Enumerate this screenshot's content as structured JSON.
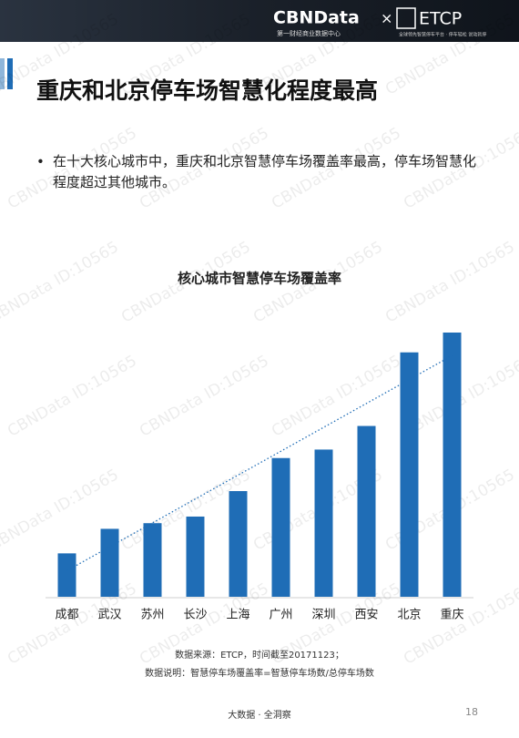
{
  "header": {
    "logo_main": "CBNData",
    "logo_times": "×",
    "logo_partner": "ETCP",
    "logo_sub": "第一财经商业数据中心",
    "partner_sub": "全球领先智慧停车平台 · 停车轻松 说动就停"
  },
  "title": "重庆和北京停车场智慧化程度最高",
  "bullet": "在十大核心城市中，重庆和北京智慧停车场覆盖率最高，停车场智慧化程度超过其他城市。",
  "watermark": "CBNData ID:10565",
  "chart_data": {
    "type": "bar",
    "title": "核心城市智慧停车场覆盖率",
    "categories": [
      "成都",
      "武汉",
      "苏州",
      "长沙",
      "上海",
      "广州",
      "深圳",
      "西安",
      "北京",
      "重庆"
    ],
    "values": [
      46,
      72,
      78,
      85,
      112,
      147,
      156,
      181,
      259,
      280
    ],
    "color": "#1f6db6",
    "trendline": true
  },
  "notes": [
    "数据来源：ETCP，时间截至20171123；",
    "数据说明：智慧停车场覆盖率=智慧停车场数/总停车场数"
  ],
  "footer": {
    "slogan": "大数据 · 全洞察",
    "page": "18"
  }
}
